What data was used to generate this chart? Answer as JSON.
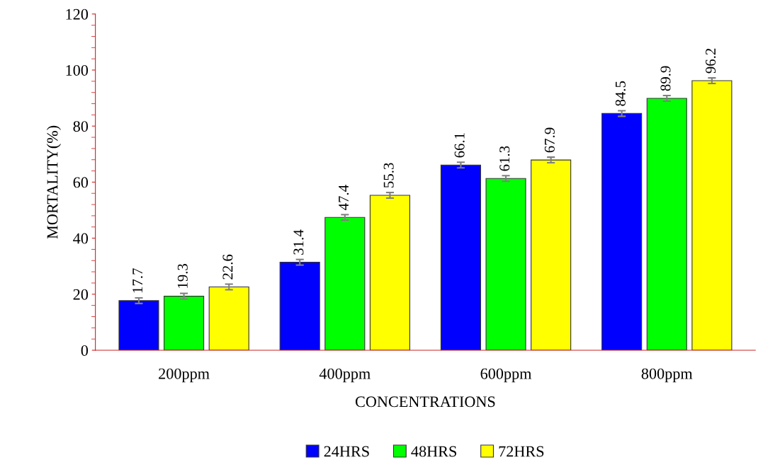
{
  "chart_data": {
    "type": "bar",
    "xlabel": "CONCENTRATIONS",
    "ylabel": "MORTALITY(%)",
    "categories": [
      "200ppm",
      "400ppm",
      "600ppm",
      "800ppm"
    ],
    "series": [
      {
        "name": "24HRS",
        "color": "#0000ff",
        "values": [
          17.7,
          31.4,
          66.1,
          84.5
        ],
        "errors": [
          1,
          1,
          1,
          1
        ]
      },
      {
        "name": "48HRS",
        "color": "#00ff00",
        "values": [
          19.3,
          47.4,
          61.3,
          89.9
        ],
        "errors": [
          1,
          1,
          1,
          1
        ]
      },
      {
        "name": "72HRS",
        "color": "#ffff00",
        "values": [
          22.6,
          55.3,
          67.9,
          96.2
        ],
        "errors": [
          1,
          1,
          1,
          1
        ]
      }
    ],
    "ylim": [
      0,
      120
    ],
    "yticks": [
      0,
      20,
      40,
      60,
      80,
      100,
      120
    ],
    "data_labels": true,
    "grid": false,
    "legend": "bottom"
  }
}
